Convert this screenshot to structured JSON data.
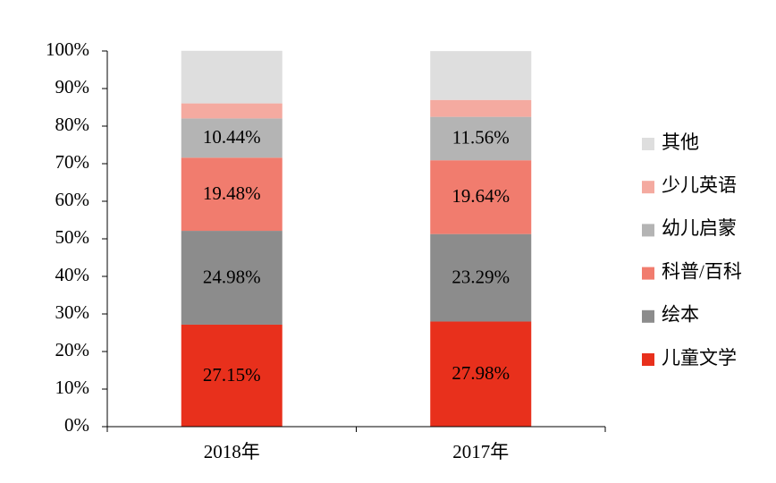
{
  "chart_data": {
    "type": "stacked_bar",
    "categories": [
      "2018年",
      "2017年"
    ],
    "series": [
      {
        "name": "儿童文学",
        "color": "#e8301c",
        "values": [
          27.15,
          27.98
        ],
        "value_labels": [
          "27.15%",
          "27.98%"
        ]
      },
      {
        "name": "绘本",
        "color": "#8c8c8c",
        "values": [
          24.98,
          23.29
        ],
        "value_labels": [
          "24.98%",
          "23.29%"
        ]
      },
      {
        "name": "科普/百科",
        "color": "#f17c6e",
        "values": [
          19.48,
          19.64
        ],
        "value_labels": [
          "19.48%",
          "19.64%"
        ]
      },
      {
        "name": "幼儿启蒙",
        "color": "#b4b4b4",
        "values": [
          10.44,
          11.56
        ],
        "value_labels": [
          "10.44%",
          "11.56%"
        ]
      },
      {
        "name": "少儿英语",
        "color": "#f4aaa0",
        "values": [
          4.0,
          4.5
        ]
      },
      {
        "name": "其他",
        "color": "#dedede",
        "values": [
          14.0,
          13.0
        ]
      }
    ],
    "ylim": [
      0,
      100
    ],
    "yticks": [
      {
        "value": 0,
        "label": "0%"
      },
      {
        "value": 10,
        "label": "10%"
      },
      {
        "value": 20,
        "label": "20%"
      },
      {
        "value": 30,
        "label": "30%"
      },
      {
        "value": 40,
        "label": "40%"
      },
      {
        "value": 50,
        "label": "50%"
      },
      {
        "value": 60,
        "label": "60%"
      },
      {
        "value": 70,
        "label": "70%"
      },
      {
        "value": 80,
        "label": "80%"
      },
      {
        "value": 90,
        "label": "90%"
      },
      {
        "value": 100,
        "label": "100%"
      }
    ],
    "legend": "right"
  }
}
